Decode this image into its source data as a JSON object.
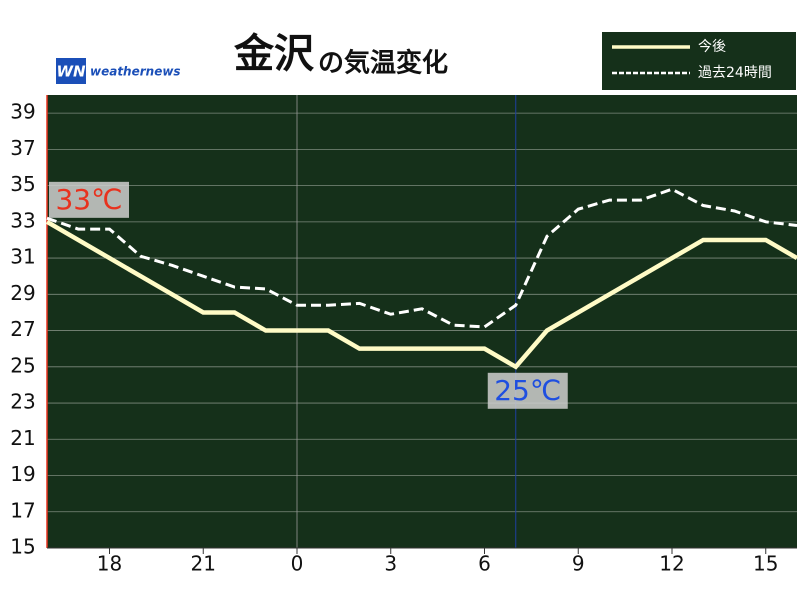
{
  "chart_data": {
    "type": "line",
    "title": "金沢",
    "subtitle": "の気温変化",
    "logo": "weathernews",
    "x": [
      16,
      17,
      18,
      19,
      20,
      21,
      22,
      23,
      24,
      25,
      26,
      27,
      28,
      29,
      30,
      31,
      32,
      33,
      34,
      35,
      36,
      37,
      38,
      39,
      40
    ],
    "series": [
      {
        "name": "今後",
        "color": "#fffbc6",
        "dash": false,
        "values": [
          33,
          32,
          31,
          30,
          29,
          28,
          28,
          27,
          27,
          27,
          26,
          26,
          26,
          26,
          26,
          25,
          27,
          28,
          29,
          30,
          31,
          32,
          32,
          32,
          31
        ]
      },
      {
        "name": "過去24時間",
        "color": "#ffffff",
        "dash": true,
        "values": [
          33.2,
          32.6,
          32.6,
          31.1,
          30.6,
          30.0,
          29.4,
          29.3,
          28.4,
          28.4,
          28.5,
          27.9,
          28.2,
          27.3,
          27.2,
          28.4,
          32.2,
          33.7,
          34.2,
          34.2,
          34.8,
          33.9,
          33.6,
          33.0,
          32.8
        ]
      }
    ],
    "annotations": [
      {
        "text": "33℃",
        "color": "#e8321e"
      },
      {
        "text": "25℃",
        "color": "#1f4fe0"
      }
    ],
    "xlim": [
      16,
      40
    ],
    "ylim": [
      15,
      40
    ],
    "xticks": [
      {
        "value": 18,
        "label": "18"
      },
      {
        "value": 21,
        "label": "21"
      },
      {
        "value": 24,
        "label": "0"
      },
      {
        "value": 27,
        "label": "3"
      },
      {
        "value": 30,
        "label": "6"
      },
      {
        "value": 33,
        "label": "9"
      },
      {
        "value": 36,
        "label": "12"
      },
      {
        "value": 39,
        "label": "15"
      }
    ],
    "yticks": [
      15,
      17,
      19,
      21,
      23,
      25,
      27,
      29,
      31,
      33,
      35,
      37,
      39
    ],
    "now_x": 31,
    "grid": true,
    "background": "#15301a"
  }
}
